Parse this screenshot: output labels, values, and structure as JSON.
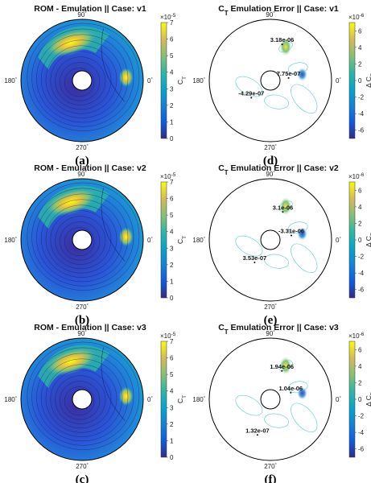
{
  "chart_data": [
    {
      "type": "heatmap",
      "projection": "polar",
      "title": "ROM - Emulation || Case: v1",
      "panel_label": "(a)",
      "angle_ticks": [
        "90",
        "0",
        "270",
        "180"
      ],
      "colorbar": {
        "label": "C_T",
        "exponent": "×10^-5",
        "ticks": [
          "0",
          "1",
          "2",
          "3",
          "4",
          "5",
          "6",
          "7"
        ],
        "range": [
          0,
          7
        ]
      },
      "annotations": []
    },
    {
      "type": "heatmap",
      "projection": "polar",
      "title": "ROM - Emulation || Case: v2",
      "panel_label": "(b)",
      "angle_ticks": [
        "90",
        "0",
        "270",
        "180"
      ],
      "colorbar": {
        "label": "C_T",
        "exponent": "×10^-5",
        "ticks": [
          "0",
          "1",
          "2",
          "3",
          "4",
          "5",
          "6",
          "7"
        ],
        "range": [
          0,
          7
        ]
      },
      "annotations": []
    },
    {
      "type": "heatmap",
      "projection": "polar",
      "title": "ROM - Emulation || Case: v3",
      "panel_label": "(c)",
      "angle_ticks": [
        "90",
        "0",
        "270",
        "180"
      ],
      "colorbar": {
        "label": "C_T",
        "exponent": "×10^-5",
        "ticks": [
          "0",
          "1",
          "2",
          "3",
          "4",
          "5",
          "6",
          "7"
        ],
        "range": [
          0,
          7
        ]
      },
      "annotations": []
    },
    {
      "type": "heatmap",
      "projection": "polar",
      "title": "C_T Emulation Error || Case: v1",
      "panel_label": "(d)",
      "angle_ticks": [
        "90",
        "0",
        "270",
        "180"
      ],
      "colorbar": {
        "label": "Δ C_T",
        "exponent": "×10^-6",
        "ticks": [
          "-6",
          "-4",
          "-2",
          "0",
          "2",
          "4",
          "6"
        ],
        "range": [
          -7,
          7
        ]
      },
      "annotations": [
        {
          "text": "3.18e-06",
          "angle_deg": 72,
          "r": 0.62
        },
        {
          "text": "7.75e-07",
          "angle_deg": 8,
          "r": 0.3
        },
        {
          "text": "-4.29e-07",
          "angle_deg": 222,
          "r": 0.42
        }
      ]
    },
    {
      "type": "heatmap",
      "projection": "polar",
      "title": "C_T Emulation Error || Case: v2",
      "panel_label": "(e)",
      "angle_ticks": [
        "90",
        "0",
        "270",
        "180"
      ],
      "colorbar": {
        "label": "Δ C_T",
        "exponent": "×10^-6",
        "ticks": [
          "-6",
          "-4",
          "-2",
          "0",
          "2",
          "4",
          "6"
        ],
        "range": [
          -7,
          7
        ]
      },
      "annotations": [
        {
          "text": "3.1e-06",
          "angle_deg": 66,
          "r": 0.5
        },
        {
          "text": "-3.31e-06",
          "angle_deg": 12,
          "r": 0.35
        },
        {
          "text": "3.53e-07",
          "angle_deg": 235,
          "r": 0.45
        }
      ]
    },
    {
      "type": "heatmap",
      "projection": "polar",
      "title": "C_T Emulation Error || Case: v3",
      "panel_label": "(f)",
      "angle_ticks": [
        "90",
        "0",
        "270",
        "180"
      ],
      "colorbar": {
        "label": "Δ C_T",
        "exponent": "×10^-6",
        "ticks": [
          "-6",
          "-4",
          "-2",
          "0",
          "2",
          "4",
          "6"
        ],
        "range": [
          -7,
          7
        ]
      },
      "annotations": [
        {
          "text": "1.94e-06",
          "angle_deg": 68,
          "r": 0.5
        },
        {
          "text": "1.04e-06",
          "angle_deg": 18,
          "r": 0.35
        },
        {
          "text": "1.32e-07",
          "angle_deg": 250,
          "r": 0.62
        }
      ]
    }
  ]
}
